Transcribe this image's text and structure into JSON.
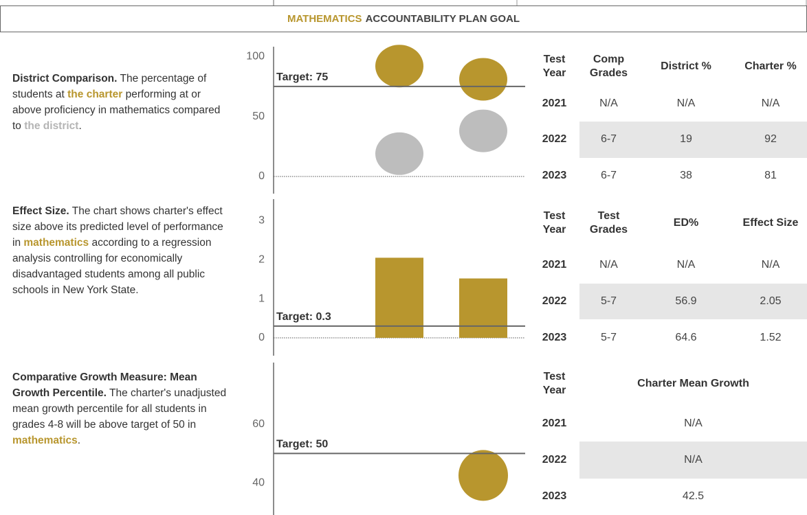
{
  "header": {
    "highlight": "MATHEMATICS",
    "title": "ACCOUNTABILITY PLAN GOAL"
  },
  "sections": [
    {
      "parts": [
        {
          "text": "District Comparison.",
          "style": "bold"
        },
        {
          "text": " The percentage of students at "
        },
        {
          "text": "the charter",
          "style": "gold"
        },
        {
          "text": " performing at or above proficiency in mathematics compared to "
        },
        {
          "text": "the district",
          "style": "gray"
        },
        {
          "text": "."
        }
      ]
    },
    {
      "parts": [
        {
          "text": "Effect Size.",
          "style": "bold"
        },
        {
          "text": " The chart shows charter's effect size above its predicted level of performance in "
        },
        {
          "text": "mathematics",
          "style": "gold"
        },
        {
          "text": " according to a regression analysis controlling for economically disadvantaged students among all public schools in New York State."
        }
      ]
    },
    {
      "parts": [
        {
          "text": "Comparative Growth Measure: Mean Growth Percentile.",
          "style": "bold"
        },
        {
          "text": "  The charter's unadjusted mean growth percentile for all students in grades 4-8 will be above target of 50 in "
        },
        {
          "text": "mathematics",
          "style": "gold"
        },
        {
          "text": "."
        }
      ]
    }
  ],
  "chart_data": [
    {
      "type": "dot",
      "categories": [
        null,
        null,
        null
      ],
      "series": [
        {
          "color": "#b8962e",
          "values": [
            null,
            92,
            81
          ]
        },
        {
          "color": "#bdbdbd",
          "values": [
            null,
            19,
            38
          ]
        }
      ],
      "ylim": [
        0,
        107
      ],
      "yticks": [
        0,
        50,
        100
      ],
      "zero_line": true,
      "target": {
        "value": 75,
        "label": "Target: 75"
      }
    },
    {
      "type": "bar",
      "categories": [
        null,
        null,
        null
      ],
      "color": "#b8962e",
      "values": [
        null,
        2.05,
        1.52
      ],
      "ylim": [
        0,
        3.55
      ],
      "yticks": [
        0,
        1,
        2,
        3
      ],
      "zero_line": true,
      "target": {
        "value": 0.3,
        "label": "Target: 0.3"
      }
    },
    {
      "type": "dot",
      "categories": [
        null,
        null,
        null
      ],
      "series": [
        {
          "color": "#b8962e",
          "values": [
            null,
            null,
            42.5
          ]
        }
      ],
      "ylim": [
        29,
        81
      ],
      "yticks": [
        40,
        60
      ],
      "target": {
        "value": 50,
        "label": "Target: 50"
      }
    }
  ],
  "tables": [
    {
      "headers": [
        "Test Year",
        "Comp Grades",
        "District %",
        "Charter %"
      ],
      "rows": [
        [
          "2021",
          "N/A",
          "N/A",
          "N/A"
        ],
        [
          "2022",
          "6-7",
          "19",
          "92"
        ],
        [
          "2023",
          "6-7",
          "38",
          "81"
        ]
      ]
    },
    {
      "headers": [
        "Test Year",
        "Test Grades",
        "ED%",
        "Effect Size"
      ],
      "rows": [
        [
          "2021",
          "N/A",
          "N/A",
          "N/A"
        ],
        [
          "2022",
          "5-7",
          "56.9",
          "2.05"
        ],
        [
          "2023",
          "5-7",
          "64.6",
          "1.52"
        ]
      ]
    },
    {
      "headers": [
        "Test Year",
        "Charter Mean Growth"
      ],
      "rows": [
        [
          "2021",
          "N/A"
        ],
        [
          "2022",
          "N/A"
        ],
        [
          "2023",
          "42.5"
        ]
      ]
    }
  ]
}
